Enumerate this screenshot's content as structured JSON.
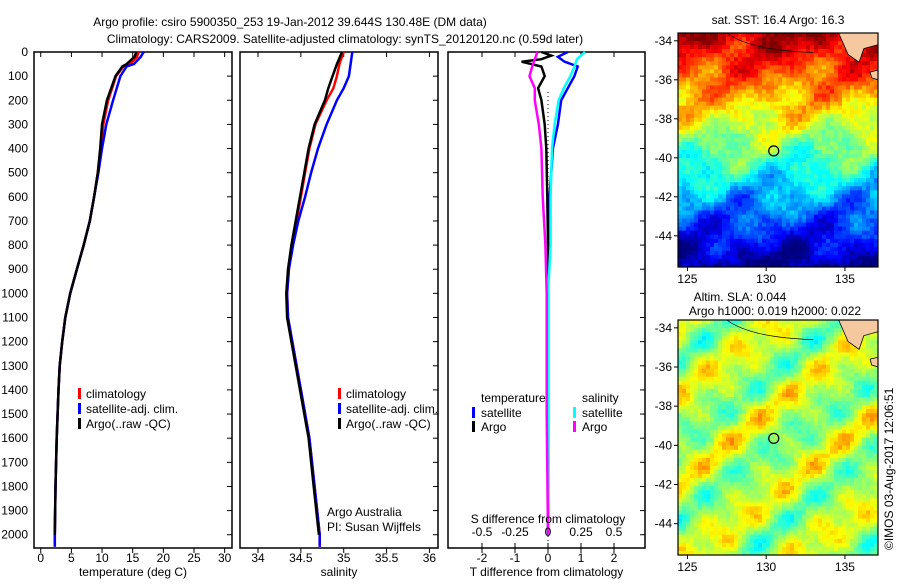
{
  "title_line1": "Argo profile: csiro 5900350_253 19-Jan-2012 39.644S 130.48E (DM data)",
  "title_line2": "Climatology: CARS2009. Satellite-adjusted climatology: synTS_20120120.nc (0.59d later)",
  "side_label": "©IMOS 03-Aug-2017 12:06:51",
  "colors": {
    "climatology": "#ff0000",
    "satellite": "#0000ff",
    "argo": "#000000",
    "sal_sat": "#00ffff",
    "sal_argo": "#ff00ff"
  },
  "chart_data": [
    {
      "type": "line",
      "title": "",
      "xlabel": "temperature (deg C)",
      "ylabel": "",
      "xlim": [
        -1.1,
        31.2
      ],
      "ylim": [
        2055,
        0
      ],
      "xticks": [
        "0",
        "5",
        "10",
        "15",
        "20",
        "25",
        "30"
      ],
      "yticks": [
        "0",
        "100",
        "200",
        "300",
        "400",
        "500",
        "600",
        "700",
        "800",
        "900",
        "1000",
        "1100",
        "1200",
        "1300",
        "1400",
        "1500",
        "1600",
        "1700",
        "1800",
        "1900",
        "2000"
      ],
      "legend": [
        "climatology",
        "satellite-adj. clim.",
        "Argo(..raw -QC)"
      ],
      "series": [
        {
          "name": "climatology",
          "depth": [
            0,
            20,
            50,
            60,
            100,
            200,
            300,
            400,
            500,
            600,
            700,
            800,
            900,
            1000,
            1100,
            1200,
            1300,
            1400,
            1600,
            1800,
            2000,
            2050
          ],
          "values": [
            16,
            15.7,
            14.6,
            13.5,
            12.3,
            11,
            10.2,
            9.8,
            9.3,
            8.7,
            8,
            7,
            5.9,
            4.8,
            4,
            3.5,
            3.1,
            2.9,
            2.6,
            2.4,
            2.3,
            2.3
          ]
        },
        {
          "name": "satellite-adj. clim.",
          "depth": [
            0,
            20,
            50,
            60,
            100,
            200,
            300,
            400,
            500,
            600,
            700,
            800,
            900,
            1000,
            1100,
            1200,
            1300,
            1400,
            1600,
            1800,
            2000,
            2050
          ],
          "values": [
            16.8,
            16.3,
            15.2,
            14,
            13,
            11.8,
            10.7,
            10,
            9.4,
            8.7,
            8,
            7,
            5.9,
            4.8,
            4,
            3.5,
            3.1,
            2.9,
            2.6,
            2.4,
            2.3,
            2.3
          ]
        },
        {
          "name": "Argo(..raw -QC)",
          "depth": [
            0,
            20,
            50,
            60,
            100,
            200,
            300,
            400,
            500,
            600,
            700,
            800,
            900,
            1000,
            1100,
            1200,
            1300,
            1400,
            1600,
            1800,
            2000
          ],
          "values": [
            15.6,
            15.3,
            14,
            13.3,
            12.2,
            10.8,
            10,
            9.7,
            9.3,
            8.7,
            8,
            7,
            5.9,
            4.8,
            4,
            3.5,
            3.1,
            2.9,
            2.6,
            2.4,
            2.3
          ]
        }
      ]
    },
    {
      "type": "line",
      "xlabel": "salinity",
      "xlim": [
        33.79,
        36.1
      ],
      "ylim": [
        2055,
        0
      ],
      "xticks": [
        "34",
        "34.5",
        "35",
        "35.5",
        "36"
      ],
      "legend": [
        "climatology",
        "satellite-adj. clim.",
        "Argo(..raw -QC)"
      ],
      "annotation": [
        "Argo Australia",
        "PI: Susan Wijffels"
      ],
      "series": [
        {
          "name": "climatology",
          "depth": [
            0,
            50,
            100,
            150,
            200,
            300,
            400,
            500,
            600,
            700,
            800,
            900,
            1000,
            1100,
            1200,
            1400,
            1600,
            1800,
            2000,
            2050
          ],
          "values": [
            35,
            34.95,
            34.92,
            34.88,
            34.8,
            34.67,
            34.6,
            34.55,
            34.5,
            34.45,
            34.4,
            34.36,
            34.34,
            34.35,
            34.4,
            34.5,
            34.6,
            34.66,
            34.72,
            34.72
          ]
        },
        {
          "name": "satellite-adj. clim.",
          "depth": [
            0,
            50,
            100,
            150,
            200,
            300,
            400,
            500,
            600,
            700,
            800,
            900,
            1000,
            1100,
            1200,
            1400,
            1600,
            1800,
            2000,
            2050
          ],
          "values": [
            35.1,
            35.08,
            35.06,
            35,
            34.92,
            34.8,
            34.7,
            34.62,
            34.55,
            34.47,
            34.41,
            34.36,
            34.34,
            34.35,
            34.4,
            34.5,
            34.6,
            34.66,
            34.72,
            34.72
          ]
        },
        {
          "name": "Argo(..raw -QC)",
          "depth": [
            0,
            50,
            100,
            150,
            200,
            300,
            400,
            500,
            600,
            700,
            800,
            900,
            1000,
            1100,
            1200,
            1400,
            1600,
            1800,
            2000
          ],
          "values": [
            34.98,
            34.92,
            34.87,
            34.82,
            34.78,
            34.66,
            34.59,
            34.54,
            34.49,
            34.44,
            34.39,
            34.35,
            34.33,
            34.34,
            34.39,
            34.49,
            34.59,
            34.65,
            34.71
          ]
        }
      ]
    },
    {
      "type": "line",
      "xlabel": "T difference from climatology",
      "x2label": "S difference from climatology",
      "xlim": [
        -3.03,
        2.94
      ],
      "ylim": [
        2055,
        0
      ],
      "xticks": [
        "-2",
        "-1",
        "0",
        "1",
        "2"
      ],
      "x2ticks": [
        "-0.5",
        "-0.25",
        "0",
        "0.25",
        "0.5"
      ],
      "legend_headers": [
        "temperature",
        "salinity"
      ],
      "legend": [
        "satellite",
        "Argo",
        "satellite",
        "Argo"
      ],
      "series": [
        {
          "name": "T satellite",
          "depth": [
            0,
            20,
            40,
            60,
            100,
            150,
            200,
            300,
            400,
            600,
            800,
            1000,
            1500,
            2000
          ],
          "values": [
            0.6,
            0.3,
            0.5,
            0.9,
            0.8,
            0.6,
            0.4,
            0.3,
            0.15,
            0.05,
            0.02,
            0,
            0,
            0
          ]
        },
        {
          "name": "T Argo",
          "depth": [
            0,
            15,
            30,
            40,
            60,
            100,
            150,
            200,
            300,
            400,
            600,
            800,
            1000,
            1500,
            2000
          ],
          "values": [
            -0.2,
            0.1,
            -0.2,
            -0.8,
            -0.2,
            -0.1,
            -0.3,
            -0.2,
            -0.1,
            -0.05,
            -0.02,
            0,
            0,
            0,
            0
          ]
        },
        {
          "name": "S satellite",
          "depth": [
            0,
            30,
            60,
            100,
            150,
            200,
            300,
            400,
            600,
            800,
            1000,
            1500,
            2000
          ],
          "values": [
            0.28,
            0.22,
            0.2,
            0.17,
            0.12,
            0.08,
            0.05,
            0.03,
            0.02,
            0.02,
            0,
            0,
            0
          ]
        },
        {
          "name": "S Argo",
          "depth": [
            0,
            30,
            60,
            100,
            150,
            200,
            300,
            400,
            600,
            800,
            1000,
            1500,
            2000
          ],
          "values": [
            -0.08,
            -0.1,
            -0.12,
            -0.14,
            -0.1,
            -0.1,
            -0.07,
            -0.05,
            -0.04,
            -0.02,
            -0.01,
            -0.01,
            0
          ]
        }
      ]
    },
    {
      "type": "heatmap",
      "title": "sat. SST: 16.4  Argo: 16.3",
      "xlim": [
        124.4,
        137.1
      ],
      "ylim": [
        -45.6,
        -33.6
      ],
      "xticks": [
        "125",
        "130",
        "135"
      ],
      "yticks": [
        "-34",
        "-36",
        "-38",
        "-40",
        "-42",
        "-44"
      ],
      "marker": {
        "lon": 130.48,
        "lat": -39.644
      }
    },
    {
      "type": "heatmap",
      "title": "Altim. SLA: 0.044",
      "subtitle": "Argo h1000: 0.019 h2000: 0.022",
      "xlim": [
        124.4,
        137.1
      ],
      "ylim": [
        -45.6,
        -33.6
      ],
      "xticks": [
        "125",
        "130",
        "135"
      ],
      "yticks": [
        "-34",
        "-36",
        "-38",
        "-40",
        "-42",
        "-44"
      ],
      "marker": {
        "lon": 130.48,
        "lat": -39.644
      }
    }
  ]
}
